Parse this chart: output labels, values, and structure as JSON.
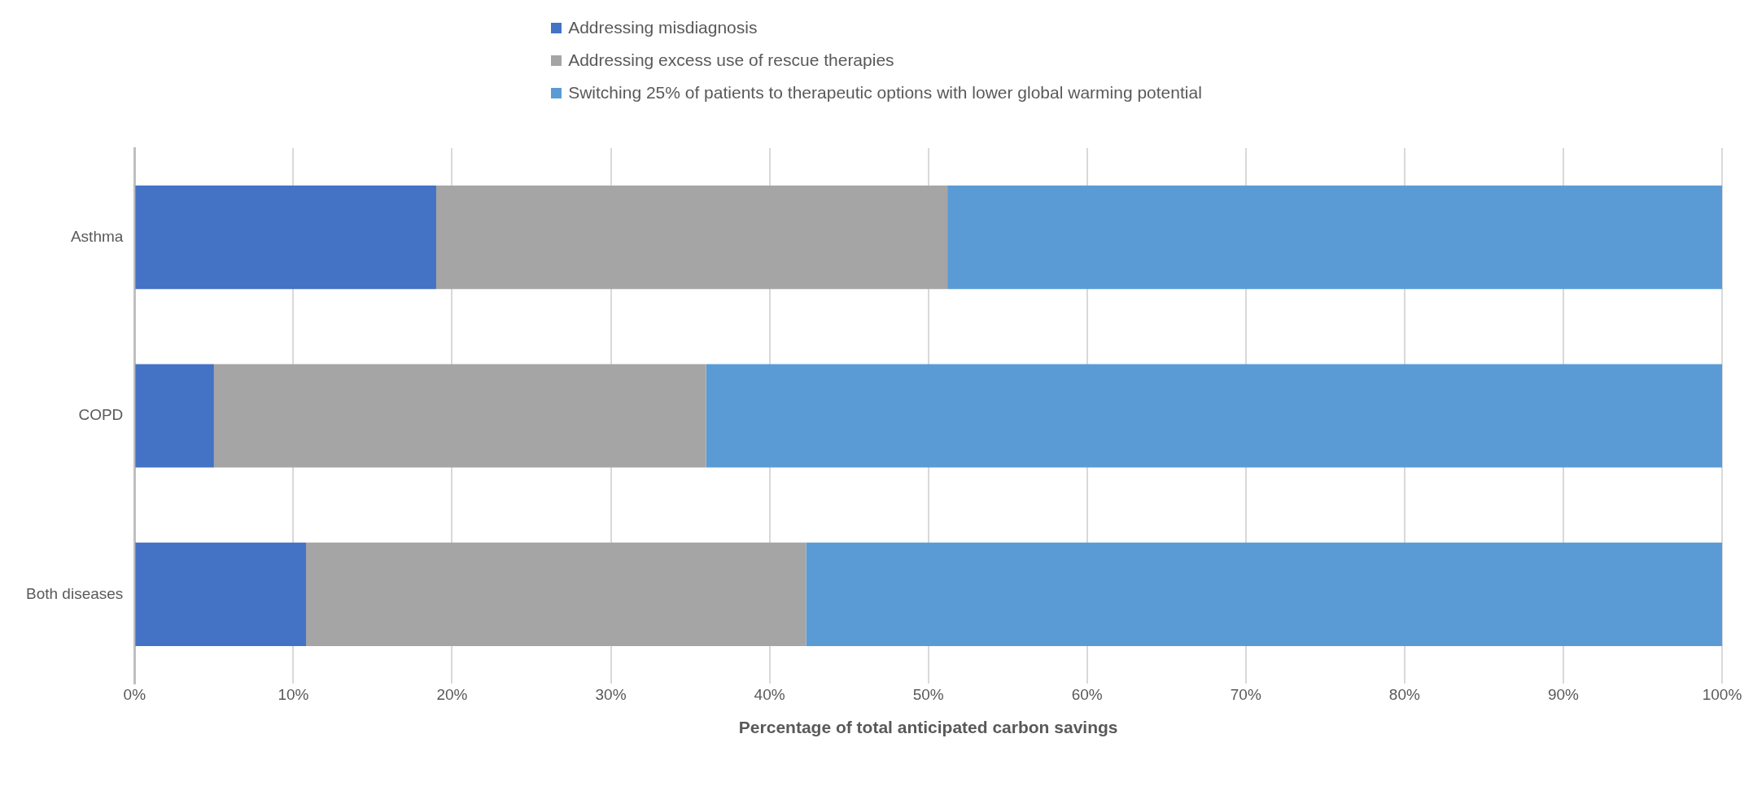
{
  "chart_data": {
    "type": "bar",
    "orientation": "horizontal",
    "stacked": true,
    "xlabel": "Percentage of total anticipated carbon savings",
    "categories": [
      "Asthma",
      "COPD",
      "Both diseases"
    ],
    "series": [
      {
        "name": "Addressing misdiagnosis",
        "color": "#4472c4",
        "values": [
          19,
          5,
          10.8
        ]
      },
      {
        "name": "Addressing excess use of rescue therapies",
        "color": "#a5a5a5",
        "values": [
          32.2,
          31,
          31.5
        ]
      },
      {
        "name": "Switching 25% of patients to therapeutic options with lower global warming potential",
        "color": "#5b9bd5",
        "values": [
          48.8,
          64,
          57.7
        ]
      }
    ],
    "xlim": [
      0,
      100
    ],
    "xticks": [
      {
        "value": 0,
        "label": "0%"
      },
      {
        "value": 10,
        "label": "10%"
      },
      {
        "value": 20,
        "label": "20%"
      },
      {
        "value": 30,
        "label": "30%"
      },
      {
        "value": 40,
        "label": "40%"
      },
      {
        "value": 50,
        "label": "50%"
      },
      {
        "value": 60,
        "label": "60%"
      },
      {
        "value": 70,
        "label": "70%"
      },
      {
        "value": 80,
        "label": "80%"
      },
      {
        "value": 90,
        "label": "90%"
      },
      {
        "value": 100,
        "label": "100%"
      }
    ],
    "grid": "x",
    "legend": "top"
  }
}
